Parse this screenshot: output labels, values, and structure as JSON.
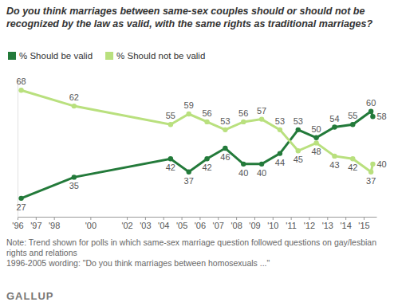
{
  "chart_data": {
    "type": "line",
    "title": "Do you think marriages between same-sex couples should or should not be recognized by the law as valid, with the same rights as traditional marriages?",
    "x": [
      1996.2,
      1999.1,
      2004.4,
      2005.4,
      2006.4,
      2007.4,
      2008.4,
      2009.4,
      2010.4,
      2011.4,
      2012.4,
      2013.4,
      2014.4,
      2015.4,
      2015.5
    ],
    "series": [
      {
        "name": "% Should be valid",
        "color": "#237a3a",
        "marker": "circle",
        "values": [
          27,
          35,
          42,
          37,
          42,
          46,
          40,
          40,
          44,
          53,
          50,
          54,
          55,
          60,
          58
        ]
      },
      {
        "name": "% Should not be valid",
        "color": "#b9e07e",
        "marker": "circle",
        "values": [
          68,
          62,
          55,
          59,
          56,
          53,
          56,
          57,
          53,
          45,
          48,
          43,
          42,
          37,
          40
        ]
      }
    ],
    "xlim": [
      1996,
      2015.7
    ],
    "xticks": [
      {
        "value": 1996,
        "label": "'96"
      },
      {
        "value": 1997,
        "label": "'97"
      },
      {
        "value": 1998,
        "label": "'98"
      },
      {
        "value": 2000,
        "label": "'00"
      },
      {
        "value": 2002,
        "label": "'02"
      },
      {
        "value": 2003,
        "label": "'03"
      },
      {
        "value": 2004,
        "label": "'04"
      },
      {
        "value": 2005,
        "label": "'05"
      },
      {
        "value": 2006,
        "label": "'06"
      },
      {
        "value": 2007,
        "label": "'07"
      },
      {
        "value": 2008,
        "label": "'08"
      },
      {
        "value": 2009,
        "label": "'09"
      },
      {
        "value": 2010,
        "label": "'10"
      },
      {
        "value": 2011,
        "label": "'11"
      },
      {
        "value": 2012,
        "label": "'12"
      },
      {
        "value": 2013,
        "label": "'13"
      },
      {
        "value": 2014,
        "label": "'14"
      },
      {
        "value": 2015,
        "label": "'15"
      }
    ],
    "ylim": [
      20,
      72
    ],
    "tick_labels": "x",
    "data_labels": true,
    "legend": "top-left",
    "annotations": [
      "Note: Trend shown for polls in which same-sex marriage question followed questions on gay/lesbian rights and relations",
      "1996-2005 wording: \"Do you think marriages between homosexuals ...\"",
      "GALLUP"
    ]
  }
}
